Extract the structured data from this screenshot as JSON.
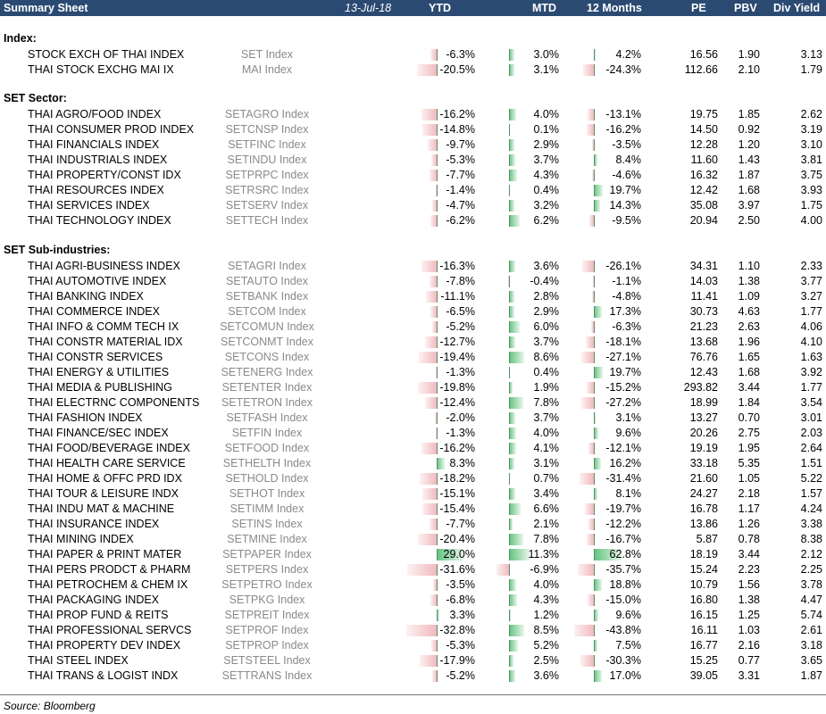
{
  "header": {
    "title": "Summary Sheet",
    "date": "13-Jul-18",
    "columns": [
      "YTD",
      "MTD",
      "12 Months",
      "PE",
      "PBV",
      "Div Yield"
    ]
  },
  "sections": [
    {
      "title": "Index:",
      "rows": [
        {
          "name": "STOCK EXCH OF THAI INDEX",
          "ticker": "SET Index",
          "ytd": "-6.3%",
          "mtd": "3.0%",
          "m12": "4.2%",
          "pe": "16.56",
          "pbv": "1.90",
          "dy": "3.13"
        },
        {
          "name": "THAI STOCK EXCHG MAI IX",
          "ticker": "MAI Index",
          "ytd": "-20.5%",
          "mtd": "3.1%",
          "m12": "-24.3%",
          "pe": "112.66",
          "pbv": "2.10",
          "dy": "1.79"
        }
      ]
    },
    {
      "title": "SET Sector:",
      "rows": [
        {
          "name": "THAI AGRO/FOOD INDEX",
          "ticker": "SETAGRO Index",
          "ytd": "-16.2%",
          "mtd": "4.0%",
          "m12": "-13.1%",
          "pe": "19.75",
          "pbv": "1.85",
          "dy": "2.62"
        },
        {
          "name": "THAI CONSUMER PROD INDEX",
          "ticker": "SETCNSP Index",
          "ytd": "-14.8%",
          "mtd": "0.1%",
          "m12": "-16.2%",
          "pe": "14.50",
          "pbv": "0.92",
          "dy": "3.19"
        },
        {
          "name": "THAI FINANCIALS INDEX",
          "ticker": "SETFINC Index",
          "ytd": "-9.7%",
          "mtd": "2.9%",
          "m12": "-3.5%",
          "pe": "12.28",
          "pbv": "1.20",
          "dy": "3.10"
        },
        {
          "name": "THAI INDUSTRIALS INDEX",
          "ticker": "SETINDU Index",
          "ytd": "-5.3%",
          "mtd": "3.7%",
          "m12": "8.4%",
          "pe": "11.60",
          "pbv": "1.43",
          "dy": "3.81"
        },
        {
          "name": "THAI PROPERTY/CONST IDX",
          "ticker": "SETPRPC Index",
          "ytd": "-7.7%",
          "mtd": "4.3%",
          "m12": "-4.6%",
          "pe": "16.32",
          "pbv": "1.87",
          "dy": "3.75"
        },
        {
          "name": "THAI RESOURCES INDEX",
          "ticker": "SETRSRC Index",
          "ytd": "-1.4%",
          "mtd": "0.4%",
          "m12": "19.7%",
          "pe": "12.42",
          "pbv": "1.68",
          "dy": "3.93"
        },
        {
          "name": "THAI SERVICES INDEX",
          "ticker": "SETSERV Index",
          "ytd": "-4.7%",
          "mtd": "3.2%",
          "m12": "14.3%",
          "pe": "35.08",
          "pbv": "3.97",
          "dy": "1.75"
        },
        {
          "name": "THAI TECHNOLOGY INDEX",
          "ticker": "SETTECH Index",
          "ytd": "-6.2%",
          "mtd": "6.2%",
          "m12": "-9.5%",
          "pe": "20.94",
          "pbv": "2.50",
          "dy": "4.00"
        }
      ]
    },
    {
      "title": "SET Sub-industries:",
      "rows": [
        {
          "name": "THAI AGRI-BUSINESS INDEX",
          "ticker": "SETAGRI Index",
          "ytd": "-16.3%",
          "mtd": "3.6%",
          "m12": "-26.1%",
          "pe": "34.31",
          "pbv": "1.10",
          "dy": "2.33"
        },
        {
          "name": "THAI AUTOMOTIVE INDEX",
          "ticker": "SETAUTO Index",
          "ytd": "-7.8%",
          "mtd": "-0.4%",
          "m12": "-1.1%",
          "pe": "14.03",
          "pbv": "1.38",
          "dy": "3.77"
        },
        {
          "name": "THAI BANKING INDEX",
          "ticker": "SETBANK Index",
          "ytd": "-11.1%",
          "mtd": "2.8%",
          "m12": "-4.8%",
          "pe": "11.41",
          "pbv": "1.09",
          "dy": "3.27"
        },
        {
          "name": "THAI COMMERCE INDEX",
          "ticker": "SETCOM Index",
          "ytd": "-6.5%",
          "mtd": "2.9%",
          "m12": "17.3%",
          "pe": "30.73",
          "pbv": "4.63",
          "dy": "1.77"
        },
        {
          "name": "THAI INFO & COMM TECH IX",
          "ticker": "SETCOMUN Index",
          "ytd": "-5.2%",
          "mtd": "6.0%",
          "m12": "-6.3%",
          "pe": "21.23",
          "pbv": "2.63",
          "dy": "4.06"
        },
        {
          "name": "THAI CONSTR MATERIAL IDX",
          "ticker": "SETCONMT Index",
          "ytd": "-12.7%",
          "mtd": "3.7%",
          "m12": "-18.1%",
          "pe": "13.68",
          "pbv": "1.96",
          "dy": "4.10"
        },
        {
          "name": "THAI CONSTR SERVICES",
          "ticker": "SETCONS Index",
          "ytd": "-19.4%",
          "mtd": "8.6%",
          "m12": "-27.1%",
          "pe": "76.76",
          "pbv": "1.65",
          "dy": "1.63"
        },
        {
          "name": "THAI ENERGY & UTILITIES",
          "ticker": "SETENERG Index",
          "ytd": "-1.3%",
          "mtd": "0.4%",
          "m12": "19.7%",
          "pe": "12.43",
          "pbv": "1.68",
          "dy": "3.92"
        },
        {
          "name": "THAI MEDIA & PUBLISHING",
          "ticker": "SETENTER Index",
          "ytd": "-19.8%",
          "mtd": "1.9%",
          "m12": "-15.2%",
          "pe": "293.82",
          "pbv": "3.44",
          "dy": "1.77"
        },
        {
          "name": "THAI ELECTRNC COMPONENTS",
          "ticker": "SETETRON Index",
          "ytd": "-12.4%",
          "mtd": "7.8%",
          "m12": "-27.2%",
          "pe": "18.99",
          "pbv": "1.84",
          "dy": "3.54"
        },
        {
          "name": "THAI FASHION INDEX",
          "ticker": "SETFASH Index",
          "ytd": "-2.0%",
          "mtd": "3.7%",
          "m12": "3.1%",
          "pe": "13.27",
          "pbv": "0.70",
          "dy": "3.01"
        },
        {
          "name": "THAI FINANCE/SEC INDEX",
          "ticker": "SETFIN Index",
          "ytd": "-1.3%",
          "mtd": "4.0%",
          "m12": "9.6%",
          "pe": "20.26",
          "pbv": "2.75",
          "dy": "2.03"
        },
        {
          "name": "THAI FOOD/BEVERAGE INDEX",
          "ticker": "SETFOOD Index",
          "ytd": "-16.2%",
          "mtd": "4.1%",
          "m12": "-12.1%",
          "pe": "19.19",
          "pbv": "1.95",
          "dy": "2.64"
        },
        {
          "name": "THAI HEALTH CARE SERVICE",
          "ticker": "SETHELTH Index",
          "ytd": "8.3%",
          "mtd": "3.1%",
          "m12": "16.2%",
          "pe": "33.18",
          "pbv": "5.35",
          "dy": "1.51"
        },
        {
          "name": "THAI HOME & OFFC PRD IDX",
          "ticker": "SETHOLD Index",
          "ytd": "-18.2%",
          "mtd": "0.7%",
          "m12": "-31.4%",
          "pe": "21.60",
          "pbv": "1.05",
          "dy": "5.22"
        },
        {
          "name": "THAI TOUR & LEISURE INDX",
          "ticker": "SETHOT Index",
          "ytd": "-15.1%",
          "mtd": "3.4%",
          "m12": "8.1%",
          "pe": "24.27",
          "pbv": "2.18",
          "dy": "1.57"
        },
        {
          "name": "THAI INDU MAT & MACHINE",
          "ticker": "SETIMM Index",
          "ytd": "-15.4%",
          "mtd": "6.6%",
          "m12": "-19.7%",
          "pe": "16.78",
          "pbv": "1.17",
          "dy": "4.24"
        },
        {
          "name": "THAI INSURANCE INDEX",
          "ticker": "SETINS Index",
          "ytd": "-7.7%",
          "mtd": "2.1%",
          "m12": "-12.2%",
          "pe": "13.86",
          "pbv": "1.26",
          "dy": "3.38"
        },
        {
          "name": "THAI MINING INDEX",
          "ticker": "SETMINE Index",
          "ytd": "-20.4%",
          "mtd": "7.8%",
          "m12": "-16.7%",
          "pe": "5.87",
          "pbv": "0.78",
          "dy": "8.38"
        },
        {
          "name": "THAI PAPER & PRINT MATER",
          "ticker": "SETPAPER Index",
          "ytd": "29.0%",
          "mtd": "11.3%",
          "m12": "62.8%",
          "pe": "18.19",
          "pbv": "3.44",
          "dy": "2.12"
        },
        {
          "name": "THAI PERS PRODCT & PHARM",
          "ticker": "SETPERS Index",
          "ytd": "-31.6%",
          "mtd": "-6.9%",
          "m12": "-35.7%",
          "pe": "15.24",
          "pbv": "2.23",
          "dy": "2.25"
        },
        {
          "name": "THAI PETROCHEM & CHEM IX",
          "ticker": "SETPETRO Index",
          "ytd": "-3.5%",
          "mtd": "4.0%",
          "m12": "18.8%",
          "pe": "10.79",
          "pbv": "1.56",
          "dy": "3.78"
        },
        {
          "name": "THAI PACKAGING INDEX",
          "ticker": "SETPKG Index",
          "ytd": "-6.8%",
          "mtd": "4.3%",
          "m12": "-15.0%",
          "pe": "16.80",
          "pbv": "1.38",
          "dy": "4.47"
        },
        {
          "name": "THAI PROP FUND & REITS",
          "ticker": "SETPREIT Index",
          "ytd": "3.3%",
          "mtd": "1.2%",
          "m12": "9.6%",
          "pe": "16.15",
          "pbv": "1.25",
          "dy": "5.74"
        },
        {
          "name": "THAI PROFESSIONAL SERVCS",
          "ticker": "SETPROF Index",
          "ytd": "-32.8%",
          "mtd": "8.5%",
          "m12": "-43.8%",
          "pe": "16.11",
          "pbv": "1.03",
          "dy": "2.61"
        },
        {
          "name": "THAI PROPERTY DEV INDEX",
          "ticker": "SETPROP Index",
          "ytd": "-5.3%",
          "mtd": "5.2%",
          "m12": "7.5%",
          "pe": "16.77",
          "pbv": "2.16",
          "dy": "3.18"
        },
        {
          "name": "THAI STEEL INDEX",
          "ticker": "SETSTEEL Index",
          "ytd": "-17.9%",
          "mtd": "2.5%",
          "m12": "-30.3%",
          "pe": "15.25",
          "pbv": "0.77",
          "dy": "3.65"
        },
        {
          "name": "THAI TRANS & LOGIST INDX",
          "ticker": "SETTRANS Index",
          "ytd": "-5.2%",
          "mtd": "3.6%",
          "m12": "17.0%",
          "pe": "39.05",
          "pbv": "3.31",
          "dy": "1.87"
        }
      ]
    }
  ],
  "colors": {
    "header_bg": "#2b4a72",
    "positive_bar": "#5fc27c",
    "negative_bar": "#f1b9bd",
    "ticker_text": "#8a8a8a"
  },
  "footer": {
    "source": "Source: Bloomberg"
  }
}
